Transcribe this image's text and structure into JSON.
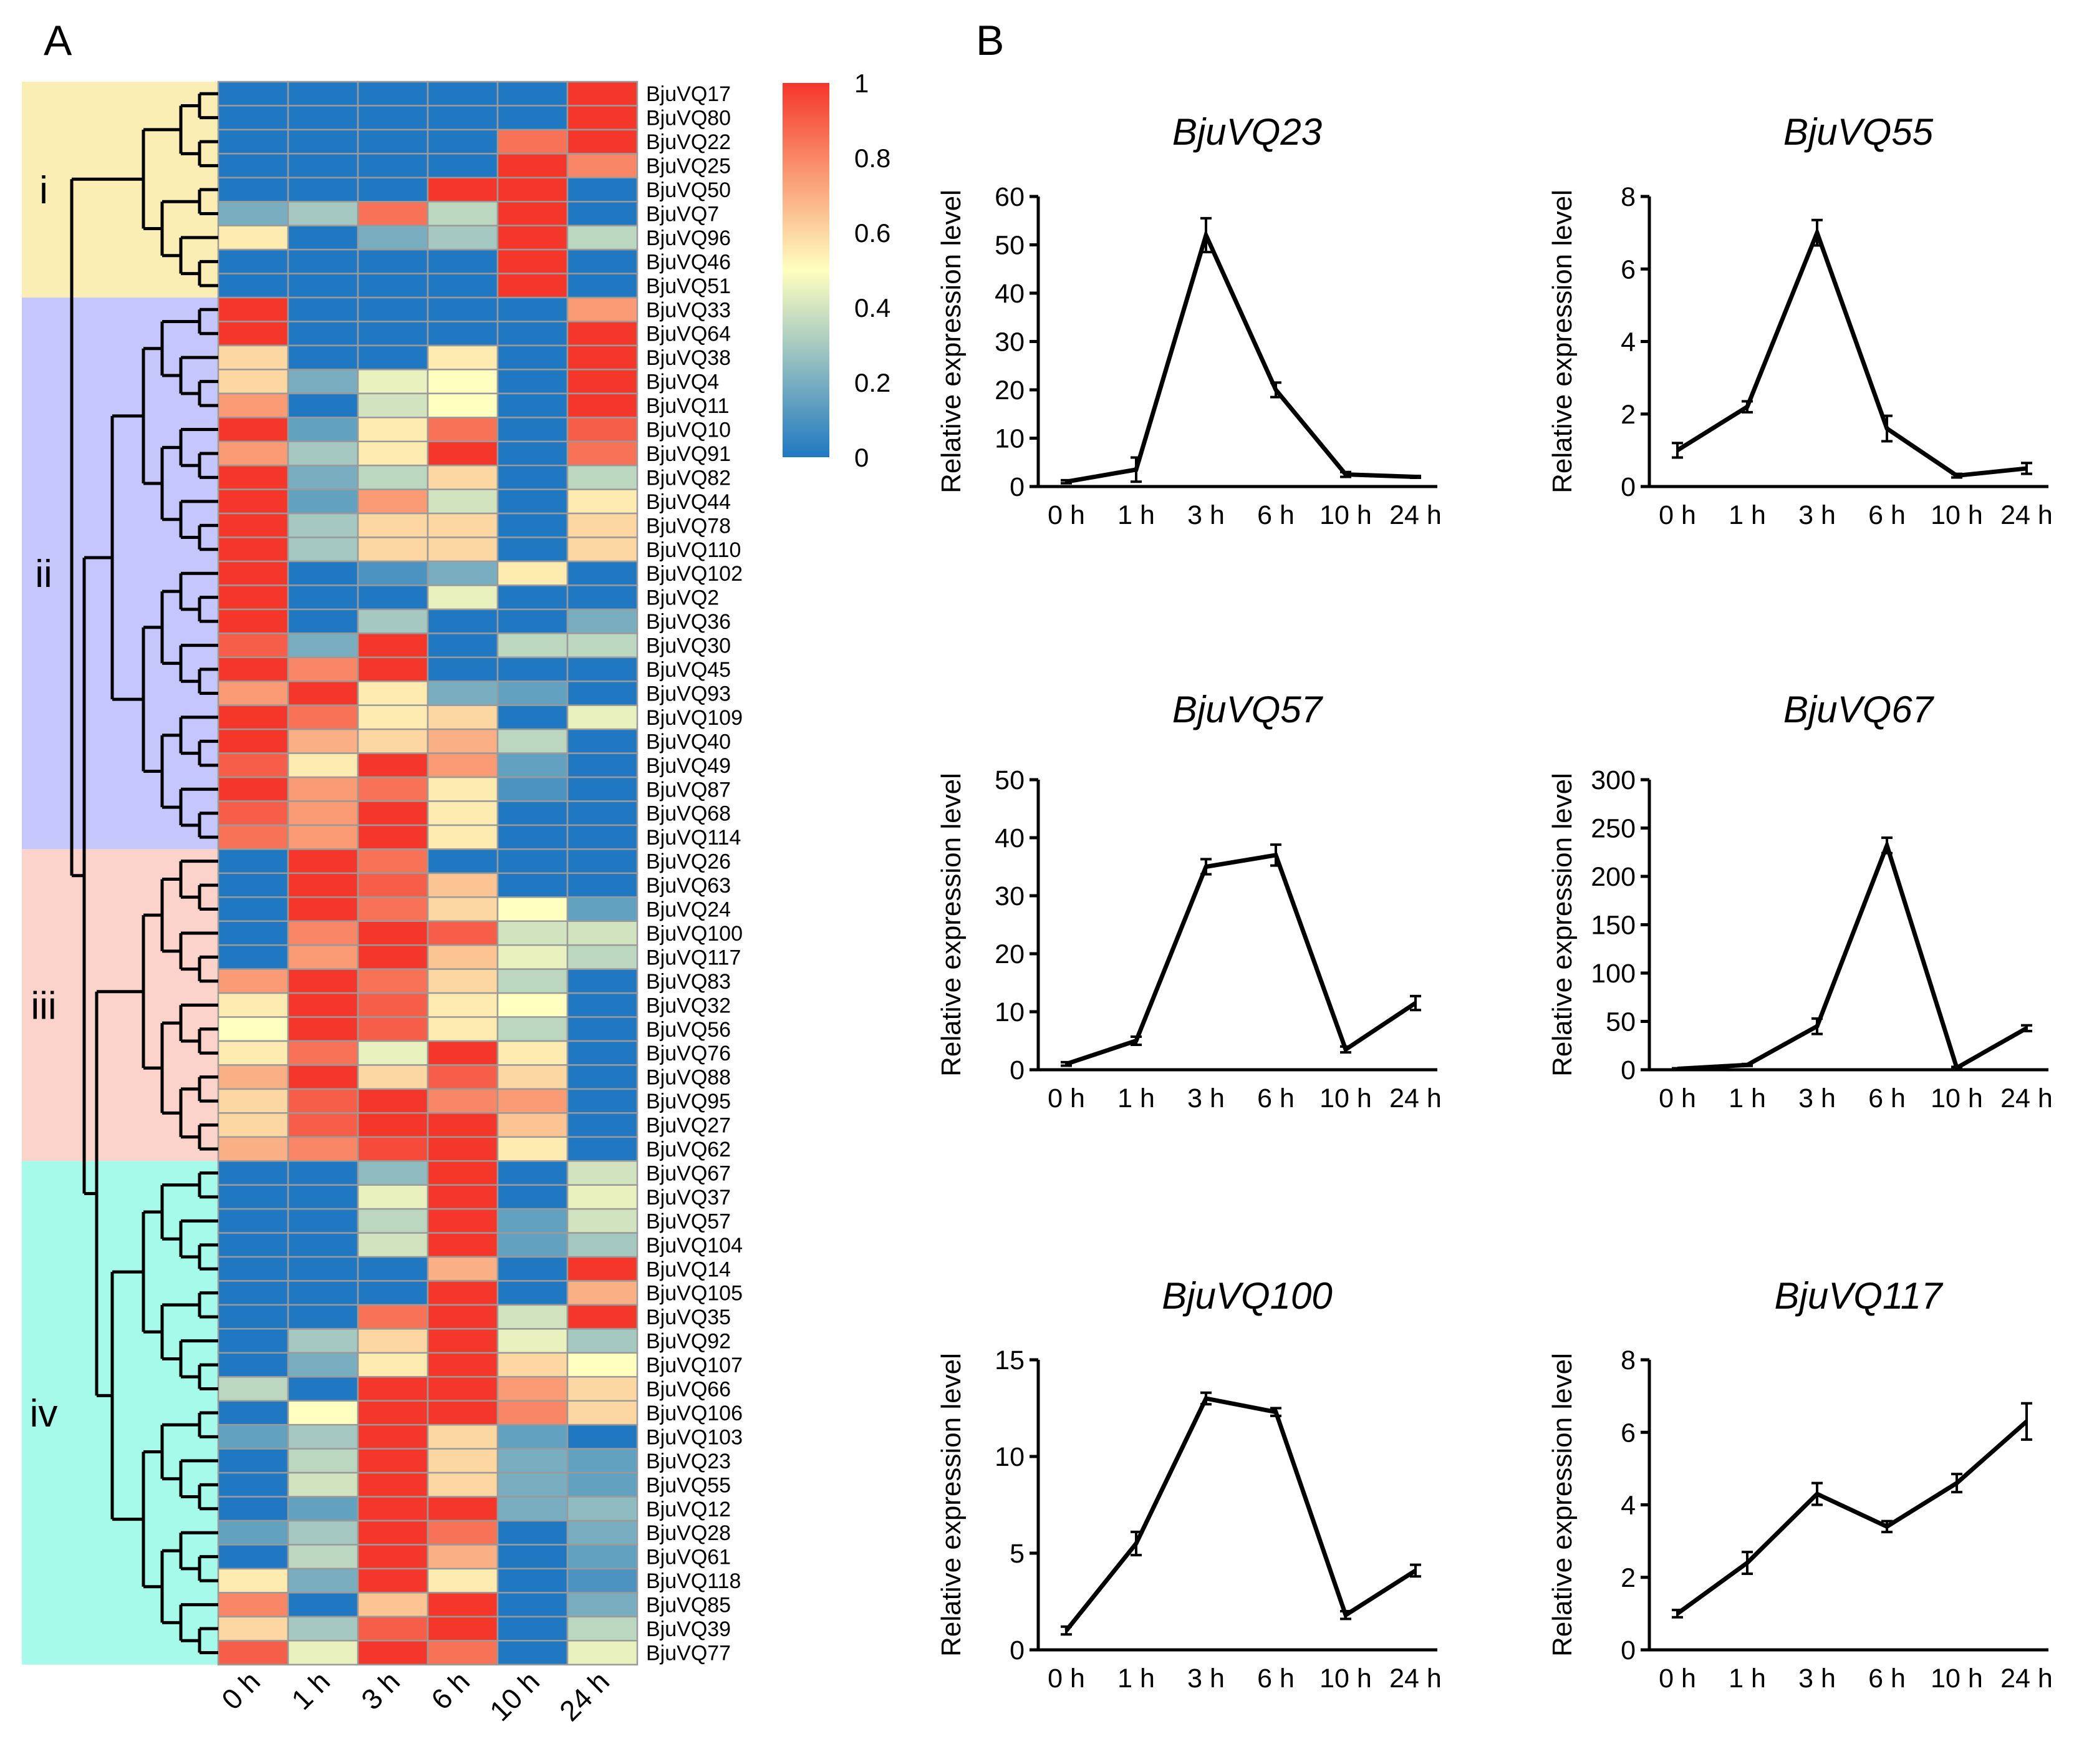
{
  "panel_labels": {
    "a": "A",
    "b": "B"
  },
  "colors": {
    "low": "#1f78c1",
    "mid": "#ffffbf",
    "high": "#f5362b",
    "cluster_i": "#fbeeb5",
    "cluster_ii": "#c5c6fb",
    "cluster_iii": "#fbd3ca",
    "cluster_iv": "#a6faea",
    "grid": "#9a9a9a"
  },
  "chart_data": [
    {
      "type": "heatmap",
      "title": "",
      "xlabel": "",
      "ylabel": "",
      "columns": [
        "0 h",
        "1 h",
        "3 h",
        "6 h",
        "10 h",
        "24 h"
      ],
      "rows": [
        "BjuVQ17",
        "BjuVQ80",
        "BjuVQ22",
        "BjuVQ25",
        "BjuVQ50",
        "BjuVQ7",
        "BjuVQ96",
        "BjuVQ46",
        "BjuVQ51",
        "BjuVQ33",
        "BjuVQ64",
        "BjuVQ38",
        "BjuVQ4",
        "BjuVQ11",
        "BjuVQ10",
        "BjuVQ91",
        "BjuVQ82",
        "BjuVQ44",
        "BjuVQ78",
        "BjuVQ110",
        "BjuVQ102",
        "BjuVQ2",
        "BjuVQ36",
        "BjuVQ30",
        "BjuVQ45",
        "BjuVQ93",
        "BjuVQ109",
        "BjuVQ40",
        "BjuVQ49",
        "BjuVQ87",
        "BjuVQ68",
        "BjuVQ114",
        "BjuVQ26",
        "BjuVQ63",
        "BjuVQ24",
        "BjuVQ100",
        "BjuVQ117",
        "BjuVQ83",
        "BjuVQ32",
        "BjuVQ56",
        "BjuVQ76",
        "BjuVQ88",
        "BjuVQ95",
        "BjuVQ27",
        "BjuVQ62",
        "BjuVQ67",
        "BjuVQ37",
        "BjuVQ57",
        "BjuVQ104",
        "BjuVQ14",
        "BjuVQ105",
        "BjuVQ35",
        "BjuVQ92",
        "BjuVQ107",
        "BjuVQ66",
        "BjuVQ106",
        "BjuVQ103",
        "BjuVQ23",
        "BjuVQ55",
        "BjuVQ12",
        "BjuVQ28",
        "BjuVQ61",
        "BjuVQ118",
        "BjuVQ85",
        "BjuVQ39",
        "BjuVQ77"
      ],
      "values": [
        [
          0,
          0,
          0,
          0,
          0,
          1
        ],
        [
          0,
          0,
          0,
          0,
          0,
          1
        ],
        [
          0,
          0,
          0,
          0,
          0.85,
          1
        ],
        [
          0,
          0,
          0,
          0,
          1,
          0.8
        ],
        [
          0,
          0,
          0,
          1,
          1,
          0
        ],
        [
          0.2,
          0.3,
          0.85,
          0.35,
          1,
          0
        ],
        [
          0.55,
          0,
          0.2,
          0.3,
          1,
          0.35
        ],
        [
          0,
          0,
          0,
          0,
          1,
          0
        ],
        [
          0,
          0,
          0,
          0,
          1,
          0
        ],
        [
          1,
          0,
          0,
          0,
          0,
          0.75
        ],
        [
          1,
          0,
          0,
          0,
          0,
          1
        ],
        [
          0.6,
          0,
          0,
          0.55,
          0,
          1
        ],
        [
          0.6,
          0.2,
          0.45,
          0.5,
          0,
          1
        ],
        [
          0.75,
          0,
          0.4,
          0.5,
          0,
          1
        ],
        [
          1,
          0.15,
          0.55,
          0.85,
          0,
          0.9
        ],
        [
          0.75,
          0.3,
          0.55,
          1,
          0,
          0.85
        ],
        [
          1,
          0.2,
          0.35,
          0.6,
          0,
          0.35
        ],
        [
          1,
          0.15,
          0.75,
          0.4,
          0,
          0.55
        ],
        [
          1,
          0.3,
          0.6,
          0.6,
          0,
          0.6
        ],
        [
          1,
          0.3,
          0.6,
          0.6,
          0,
          0.6
        ],
        [
          1,
          0,
          0.1,
          0.2,
          0.55,
          0
        ],
        [
          1,
          0,
          0,
          0.45,
          0,
          0
        ],
        [
          1,
          0,
          0.3,
          0,
          0,
          0.2
        ],
        [
          0.9,
          0.2,
          1,
          0,
          0.35,
          0.35
        ],
        [
          1,
          0.8,
          1,
          0,
          0,
          0
        ],
        [
          0.75,
          1,
          0.55,
          0.2,
          0.15,
          0
        ],
        [
          1,
          0.85,
          0.55,
          0.6,
          0,
          0.45
        ],
        [
          1,
          0.7,
          0.6,
          0.7,
          0.35,
          0
        ],
        [
          0.9,
          0.55,
          1,
          0.75,
          0.15,
          0
        ],
        [
          1,
          0.75,
          0.85,
          0.55,
          0.1,
          0
        ],
        [
          0.9,
          0.75,
          1,
          0.55,
          0,
          0
        ],
        [
          0.85,
          0.75,
          1,
          0.55,
          0,
          0
        ],
        [
          0,
          1,
          0.85,
          0,
          0,
          0
        ],
        [
          0,
          1,
          0.9,
          0.65,
          0,
          0
        ],
        [
          0,
          1,
          0.85,
          0.6,
          0.5,
          0.15
        ],
        [
          0,
          0.8,
          1,
          0.9,
          0.4,
          0.4
        ],
        [
          0,
          0.75,
          1,
          0.65,
          0.45,
          0.35
        ],
        [
          0.75,
          1,
          0.85,
          0.6,
          0.35,
          0
        ],
        [
          0.55,
          1,
          0.9,
          0.55,
          0.5,
          0
        ],
        [
          0.5,
          1,
          0.9,
          0.55,
          0.35,
          0
        ],
        [
          0.55,
          0.85,
          0.45,
          1,
          0.55,
          0
        ],
        [
          0.7,
          1,
          0.6,
          0.9,
          0.6,
          0
        ],
        [
          0.6,
          0.9,
          1,
          0.8,
          0.75,
          0
        ],
        [
          0.6,
          0.9,
          1,
          1,
          0.65,
          0
        ],
        [
          0.7,
          0.8,
          0.95,
          1,
          0.55,
          0
        ],
        [
          0,
          0,
          0.25,
          1,
          0,
          0.4
        ],
        [
          0,
          0,
          0.45,
          1,
          0,
          0.45
        ],
        [
          0,
          0,
          0.35,
          1,
          0.15,
          0.4
        ],
        [
          0,
          0,
          0.4,
          1,
          0.15,
          0.3
        ],
        [
          0,
          0,
          0,
          0.7,
          0,
          1
        ],
        [
          0,
          0,
          0,
          1,
          0,
          0.7
        ],
        [
          0,
          0,
          0.85,
          1,
          0.4,
          1
        ],
        [
          0,
          0.3,
          0.6,
          1,
          0.45,
          0.3
        ],
        [
          0,
          0.2,
          0.55,
          1,
          0.6,
          0.5
        ],
        [
          0.35,
          0,
          1,
          1,
          0.75,
          0.6
        ],
        [
          0,
          0.5,
          1,
          1,
          0.8,
          0.6
        ],
        [
          0.15,
          0.3,
          1,
          0.6,
          0.15,
          0
        ],
        [
          0,
          0.35,
          1,
          0.6,
          0.2,
          0.15
        ],
        [
          0,
          0.4,
          1,
          0.6,
          0.2,
          0.15
        ],
        [
          0,
          0.15,
          1,
          1,
          0.2,
          0.25
        ],
        [
          0.15,
          0.3,
          1,
          0.85,
          0,
          0.2
        ],
        [
          0,
          0.35,
          1,
          0.7,
          0,
          0.15
        ],
        [
          0.55,
          0.2,
          1,
          0.55,
          0,
          0.1
        ],
        [
          0.8,
          0,
          0.65,
          1,
          0,
          0.2
        ],
        [
          0.6,
          0.3,
          0.9,
          1,
          0,
          0.35
        ],
        [
          0.9,
          0.45,
          1,
          0.85,
          0,
          0.45
        ]
      ],
      "colorbar": {
        "range": [
          0,
          1
        ],
        "ticks": [
          "0",
          "0.2",
          "0.4",
          "0.6",
          "0.8",
          "1"
        ]
      },
      "clusters": [
        "i",
        "ii",
        "iii",
        "iv"
      ],
      "cluster_sizes": [
        9,
        23,
        13,
        21
      ]
    },
    {
      "type": "line",
      "title": "BjuVQ23",
      "ylabel": "Relative expression level",
      "xlabel": "",
      "categories": [
        "0 h",
        "1 h",
        "3 h",
        "6 h",
        "10 h",
        "24 h"
      ],
      "values": [
        1,
        3.5,
        52,
        20,
        2.5,
        2
      ],
      "errors": [
        0.3,
        2.5,
        3.5,
        1.5,
        0.5,
        0.2
      ],
      "ylim": [
        0,
        60
      ],
      "yticks": [
        "0",
        "10",
        "20",
        "30",
        "40",
        "50",
        "60"
      ]
    },
    {
      "type": "line",
      "title": "BjuVQ55",
      "ylabel": "Relative expression level",
      "xlabel": "",
      "categories": [
        "0 h",
        "1 h",
        "3 h",
        "6 h",
        "10 h",
        "24 h"
      ],
      "values": [
        1,
        2.2,
        7,
        1.6,
        0.3,
        0.5
      ],
      "errors": [
        0.2,
        0.15,
        0.35,
        0.35,
        0.05,
        0.15
      ],
      "ylim": [
        0,
        8
      ],
      "yticks": [
        "0",
        "2",
        "4",
        "6",
        "8"
      ]
    },
    {
      "type": "line",
      "title": "BjuVQ57",
      "ylabel": "Relative expression level",
      "xlabel": "",
      "categories": [
        "0 h",
        "1 h",
        "3 h",
        "6 h",
        "10 h",
        "24 h"
      ],
      "values": [
        1,
        5,
        35,
        37,
        3.5,
        11.5
      ],
      "errors": [
        0.3,
        0.7,
        1.3,
        1.8,
        0.5,
        1.2
      ],
      "ylim": [
        0,
        50
      ],
      "yticks": [
        "0",
        "10",
        "20",
        "30",
        "40",
        "50"
      ]
    },
    {
      "type": "line",
      "title": "BjuVQ67",
      "ylabel": "Relative expression level",
      "xlabel": "",
      "categories": [
        "0 h",
        "1 h",
        "3 h",
        "6 h",
        "10 h",
        "24 h"
      ],
      "values": [
        1,
        5,
        45,
        232,
        2,
        43
      ],
      "errors": [
        0.5,
        1,
        8,
        8,
        1,
        3
      ],
      "ylim": [
        0,
        300
      ],
      "yticks": [
        "0",
        "50",
        "100",
        "150",
        "200",
        "250",
        "300"
      ]
    },
    {
      "type": "line",
      "title": "BjuVQ100",
      "ylabel": "Relative expression level",
      "xlabel": "",
      "categories": [
        "0 h",
        "1 h",
        "3 h",
        "6 h",
        "10 h",
        "24 h"
      ],
      "values": [
        1,
        5.5,
        13,
        12.3,
        1.8,
        4.1
      ],
      "errors": [
        0.2,
        0.6,
        0.3,
        0.2,
        0.2,
        0.3
      ],
      "ylim": [
        0,
        15
      ],
      "yticks": [
        "0",
        "5",
        "10",
        "15"
      ]
    },
    {
      "type": "line",
      "title": "BjuVQ117",
      "ylabel": "Relative expression level",
      "xlabel": "",
      "categories": [
        "0 h",
        "1 h",
        "3 h",
        "6 h",
        "10 h",
        "24 h"
      ],
      "values": [
        1,
        2.4,
        4.3,
        3.4,
        4.6,
        6.3
      ],
      "errors": [
        0.1,
        0.3,
        0.3,
        0.15,
        0.25,
        0.5
      ],
      "ylim": [
        0,
        8
      ],
      "yticks": [
        "0",
        "2",
        "4",
        "6",
        "8"
      ]
    }
  ]
}
